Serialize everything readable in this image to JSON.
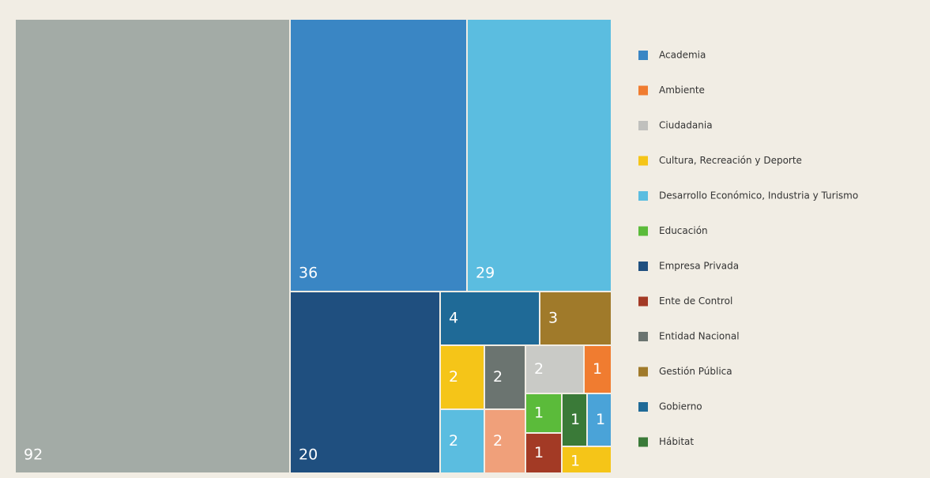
{
  "chart_data": {
    "type": "treemap",
    "cells": [
      {
        "value": 92,
        "color": "#a3aba6"
      },
      {
        "value": 36,
        "color": "#3a86c4"
      },
      {
        "value": 29,
        "color": "#5bbde0"
      },
      {
        "value": 20,
        "color": "#1f4f7f"
      },
      {
        "value": 4,
        "color": "#1f6a97"
      },
      {
        "value": 3,
        "color": "#a07a2a"
      },
      {
        "value": 2,
        "color": "#f5c518"
      },
      {
        "value": 2,
        "color": "#6b7470"
      },
      {
        "value": 2,
        "color": "#c9cac6"
      },
      {
        "value": 1,
        "color": "#f07c30"
      },
      {
        "value": 2,
        "color": "#5bbde0"
      },
      {
        "value": 2,
        "color": "#f0a07a"
      },
      {
        "value": 1,
        "color": "#5bbb3a"
      },
      {
        "value": 1,
        "color": "#3a7a38"
      },
      {
        "value": 1,
        "color": "#4aa3d8"
      },
      {
        "value": 1,
        "color": "#a33a25"
      },
      {
        "value": 1,
        "color": "#f5c518"
      }
    ],
    "legend": [
      {
        "name": "Academia",
        "color": "#3a86c4"
      },
      {
        "name": "Ambiente",
        "color": "#f07c30"
      },
      {
        "name": "Ciudadania",
        "color": "#c0c0bd"
      },
      {
        "name": "Cultura, Recreación y Deporte",
        "color": "#f5c518"
      },
      {
        "name": "Desarrollo Económico, Industria y Turismo",
        "color": "#5bbde0"
      },
      {
        "name": "Educación",
        "color": "#5bbb3a"
      },
      {
        "name": "Empresa Privada",
        "color": "#1f4f7f"
      },
      {
        "name": "Ente de Control",
        "color": "#a33a25"
      },
      {
        "name": "Entidad Nacional",
        "color": "#6b7470"
      },
      {
        "name": "Gestión Pública",
        "color": "#a07a2a"
      },
      {
        "name": "Gobierno",
        "color": "#1f6a97"
      },
      {
        "name": "Hábitat",
        "color": "#3a7a38"
      }
    ]
  }
}
